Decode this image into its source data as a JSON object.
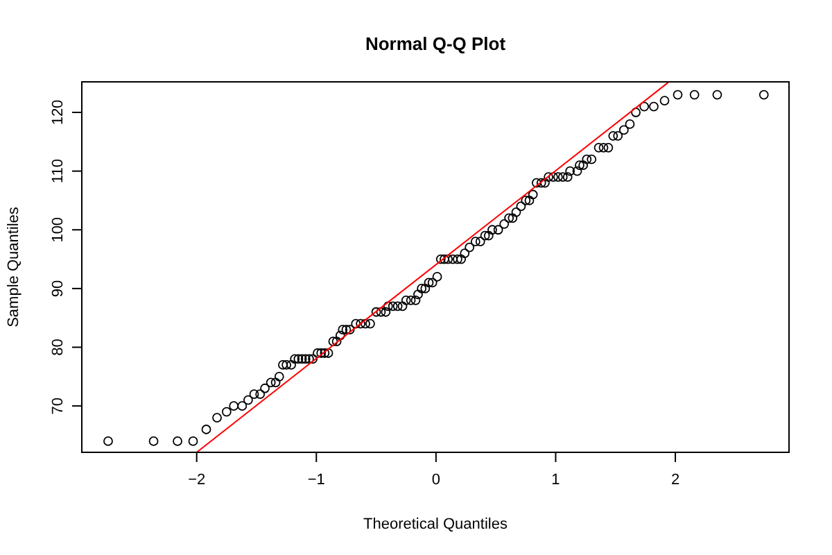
{
  "chart_data": {
    "type": "scatter",
    "title": "Normal Q-Q Plot",
    "xlabel": "Theoretical Quantiles",
    "ylabel": "Sample Quantiles",
    "xlim": [
      -2.96,
      2.95
    ],
    "ylim": [
      62.1,
      125.2
    ],
    "xticks": [
      -2,
      -1,
      0,
      1,
      2
    ],
    "yticks": [
      70,
      80,
      90,
      100,
      110,
      120
    ],
    "grid": false,
    "series": [
      {
        "color": "#000000",
        "marker": "circle",
        "x": [
          -2.74,
          -2.36,
          -2.16,
          -2.03,
          -1.92,
          -1.83,
          -1.75,
          -1.69,
          -1.62,
          -1.57,
          -1.52,
          -1.47,
          -1.43,
          -1.38,
          -1.34,
          -1.31,
          -1.28,
          -1.25,
          -1.21,
          -1.18,
          -1.15,
          -1.12,
          -1.09,
          -1.06,
          -1.03,
          -0.99,
          -0.96,
          -0.93,
          -0.9,
          -0.86,
          -0.83,
          -0.8,
          -0.78,
          -0.75,
          -0.72,
          -0.67,
          -0.63,
          -0.59,
          -0.55,
          -0.5,
          -0.46,
          -0.42,
          -0.4,
          -0.36,
          -0.32,
          -0.28,
          -0.25,
          -0.21,
          -0.17,
          -0.15,
          -0.12,
          -0.09,
          -0.06,
          -0.03,
          0.01,
          0.04,
          0.07,
          0.1,
          0.14,
          0.18,
          0.21,
          0.24,
          0.28,
          0.33,
          0.37,
          0.41,
          0.44,
          0.47,
          0.52,
          0.57,
          0.61,
          0.64,
          0.67,
          0.71,
          0.75,
          0.78,
          0.81,
          0.84,
          0.88,
          0.91,
          0.94,
          0.98,
          1.02,
          1.06,
          1.1,
          1.12,
          1.18,
          1.2,
          1.23,
          1.26,
          1.3,
          1.36,
          1.4,
          1.44,
          1.48,
          1.52,
          1.57,
          1.62,
          1.67,
          1.74,
          1.82,
          1.91,
          2.02,
          2.16,
          2.35,
          2.74
        ],
        "values": [
          64,
          64,
          64,
          64,
          66,
          68,
          69,
          70,
          70,
          71,
          72,
          72,
          73,
          74,
          74,
          75,
          77,
          77,
          77,
          78,
          78,
          78,
          78,
          78,
          78,
          79,
          79,
          79,
          79,
          81,
          81,
          82,
          83,
          83,
          83,
          84,
          84,
          84,
          84,
          86,
          86,
          86,
          87,
          87,
          87,
          87,
          88,
          88,
          88,
          89,
          90,
          90,
          91,
          91,
          92,
          95,
          95,
          95,
          95,
          95,
          95,
          96,
          97,
          98,
          98,
          99,
          99,
          100,
          100,
          101,
          102,
          102,
          103,
          104,
          105,
          105,
          106,
          108,
          108,
          108,
          109,
          109,
          109,
          109,
          109,
          110,
          110,
          111,
          111,
          112,
          112,
          114,
          114,
          114,
          116,
          116,
          117,
          118,
          120,
          121,
          121,
          122,
          123,
          123,
          123,
          123
        ]
      },
      {
        "type": "line",
        "color": "#ff0000",
        "marker": "none",
        "x": [
          -2,
          1.94
        ],
        "values": [
          62.1,
          125.1
        ]
      }
    ]
  }
}
